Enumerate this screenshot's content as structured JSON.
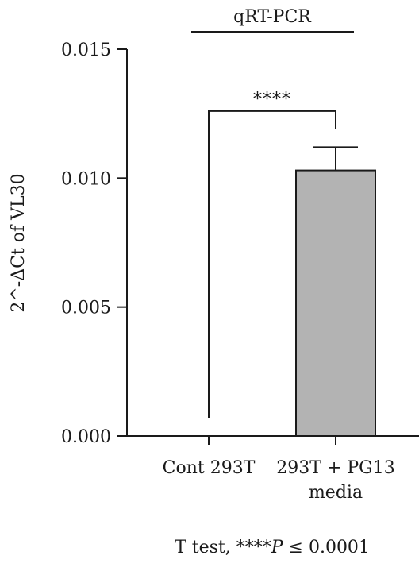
{
  "chart_data": {
    "type": "bar",
    "title": "qRT-PCR",
    "ylabel": "2^-ΔCt of VL30",
    "xlabel": "",
    "ylim": [
      0,
      0.015
    ],
    "yticks": [
      "0.000",
      "0.005",
      "0.010",
      "0.015"
    ],
    "categories": [
      [
        "Cont 293T"
      ],
      [
        "293T + PG13",
        "media"
      ]
    ],
    "values": [
      0.0,
      0.0103
    ],
    "errors": [
      0.0,
      0.0009
    ],
    "significance": {
      "label": "****",
      "between": [
        0,
        1
      ],
      "y": 0.0126
    },
    "bar_color": "#b3b3b3",
    "footnote": {
      "prefix": "T test, ",
      "stars": "****",
      "p": "P",
      "suffix": " ≤ 0.0001"
    }
  }
}
